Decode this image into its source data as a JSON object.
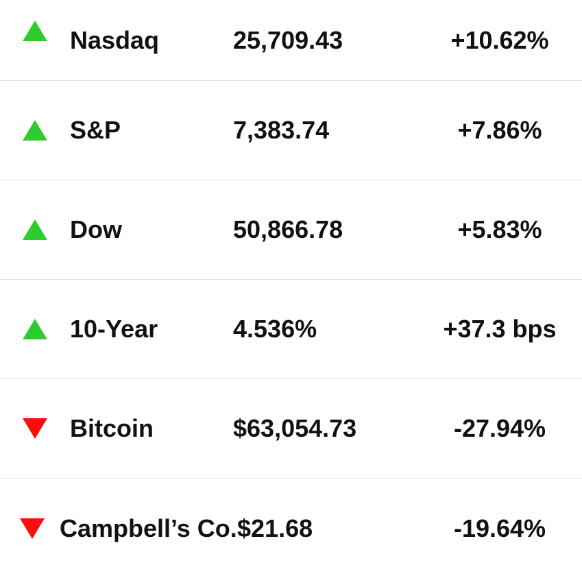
{
  "rows": [
    {
      "name": "Nasdaq",
      "value": "25,709.43",
      "change": "+10.62%"
    },
    {
      "name": "S&P",
      "value": "7,383.74",
      "change": "+7.86%"
    },
    {
      "name": "Dow",
      "value": "50,866.78",
      "change": "+5.83%"
    },
    {
      "name": "10-Year",
      "value": "4.536%",
      "change": "+37.3 bps"
    },
    {
      "name": "Bitcoin",
      "value": "$63,054.73",
      "change": "-27.94%"
    },
    {
      "name": "Campbell’s Co.",
      "value": "$21.68",
      "change": "-19.64%"
    }
  ]
}
